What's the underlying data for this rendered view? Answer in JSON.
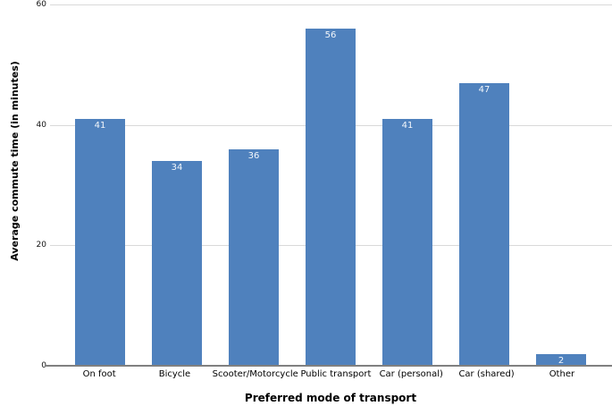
{
  "chart_data": {
    "type": "bar",
    "title": "",
    "categories": [
      "On foot",
      "Bicycle",
      "Scooter/Motorcycle",
      "Public transport",
      "Car (personal)",
      "Car (shared)",
      "Other"
    ],
    "values": [
      41,
      34,
      36,
      56,
      41,
      47,
      2
    ],
    "xlabel": "Preferred mode of transport",
    "ylabel": "Average commute time (in minutes)",
    "ylim": [
      0,
      60
    ],
    "yticks": [
      0,
      20,
      40,
      60
    ],
    "grid": true,
    "legend": false,
    "value_labels_shown": true,
    "colors": {
      "bar": "#4f81bd",
      "value_label": "#f2f6fb",
      "gridline": "#d9d9d9",
      "axis_line": "#808080",
      "tick_text": "#111111"
    }
  }
}
